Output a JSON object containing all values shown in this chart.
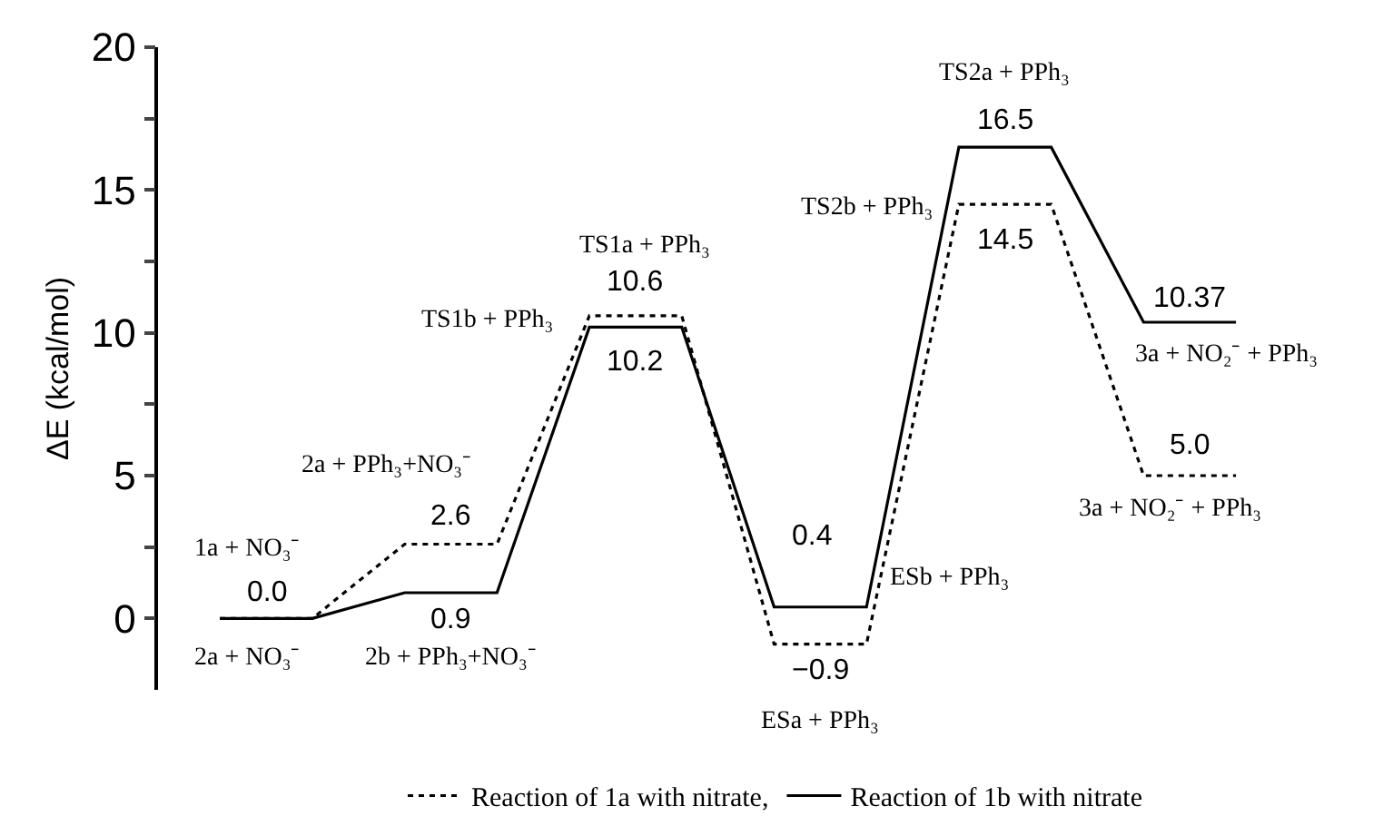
{
  "chart_data": {
    "type": "line",
    "ylabel": "ΔE (kcal/mol)",
    "tick_labels": "y",
    "legend": "bottom",
    "marker": "none",
    "categories": [
      null,
      null,
      null,
      null,
      null,
      null,
      null,
      null,
      null,
      null,
      null,
      null
    ],
    "ylim": [
      -2.5,
      20
    ],
    "yticks": [
      0,
      {
        "value": 2.5,
        "label": null
      },
      5,
      {
        "value": 7.5,
        "label": null
      },
      10,
      {
        "value": 12.5,
        "label": null
      },
      15,
      {
        "value": 17.5,
        "label": null
      },
      20
    ],
    "series": [
      {
        "name": "Reaction of 1a with nitrate,",
        "color": "#000000",
        "line_style": "dotted",
        "values": [
          0.0,
          0.0,
          2.6,
          2.6,
          10.6,
          10.6,
          -0.9,
          -0.9,
          14.5,
          14.5,
          5.0,
          5.0
        ]
      },
      {
        "name": "Reaction of 1b with nitrate",
        "color": "#000000",
        "line_style": "solid",
        "values": [
          0.0,
          0.0,
          0.9,
          0.9,
          10.2,
          10.2,
          0.4,
          0.4,
          16.5,
          16.5,
          10.37,
          10.37
        ]
      }
    ],
    "annotations": [
      "0.0",
      "1a + NO₃⁻",
      "2a + NO₃⁻",
      "2b + PPh₃+NO₃⁻",
      "0.9",
      "2.6",
      "2a + PPh₃+NO₃⁻",
      "TS1b + PPh₃",
      "TS1a + PPh₃",
      "10.6",
      "10.2",
      "0.4",
      "ESb + PPh₃",
      "−0.9",
      "ESa + PPh₃",
      "TS2b + PPh₃",
      "TS2a + PPh₃",
      "16.5",
      "14.5",
      "10.37",
      "3a + NO₂⁻ + PPh₃",
      "5.0",
      "3a + NO₂⁻ + PPh₃"
    ]
  }
}
